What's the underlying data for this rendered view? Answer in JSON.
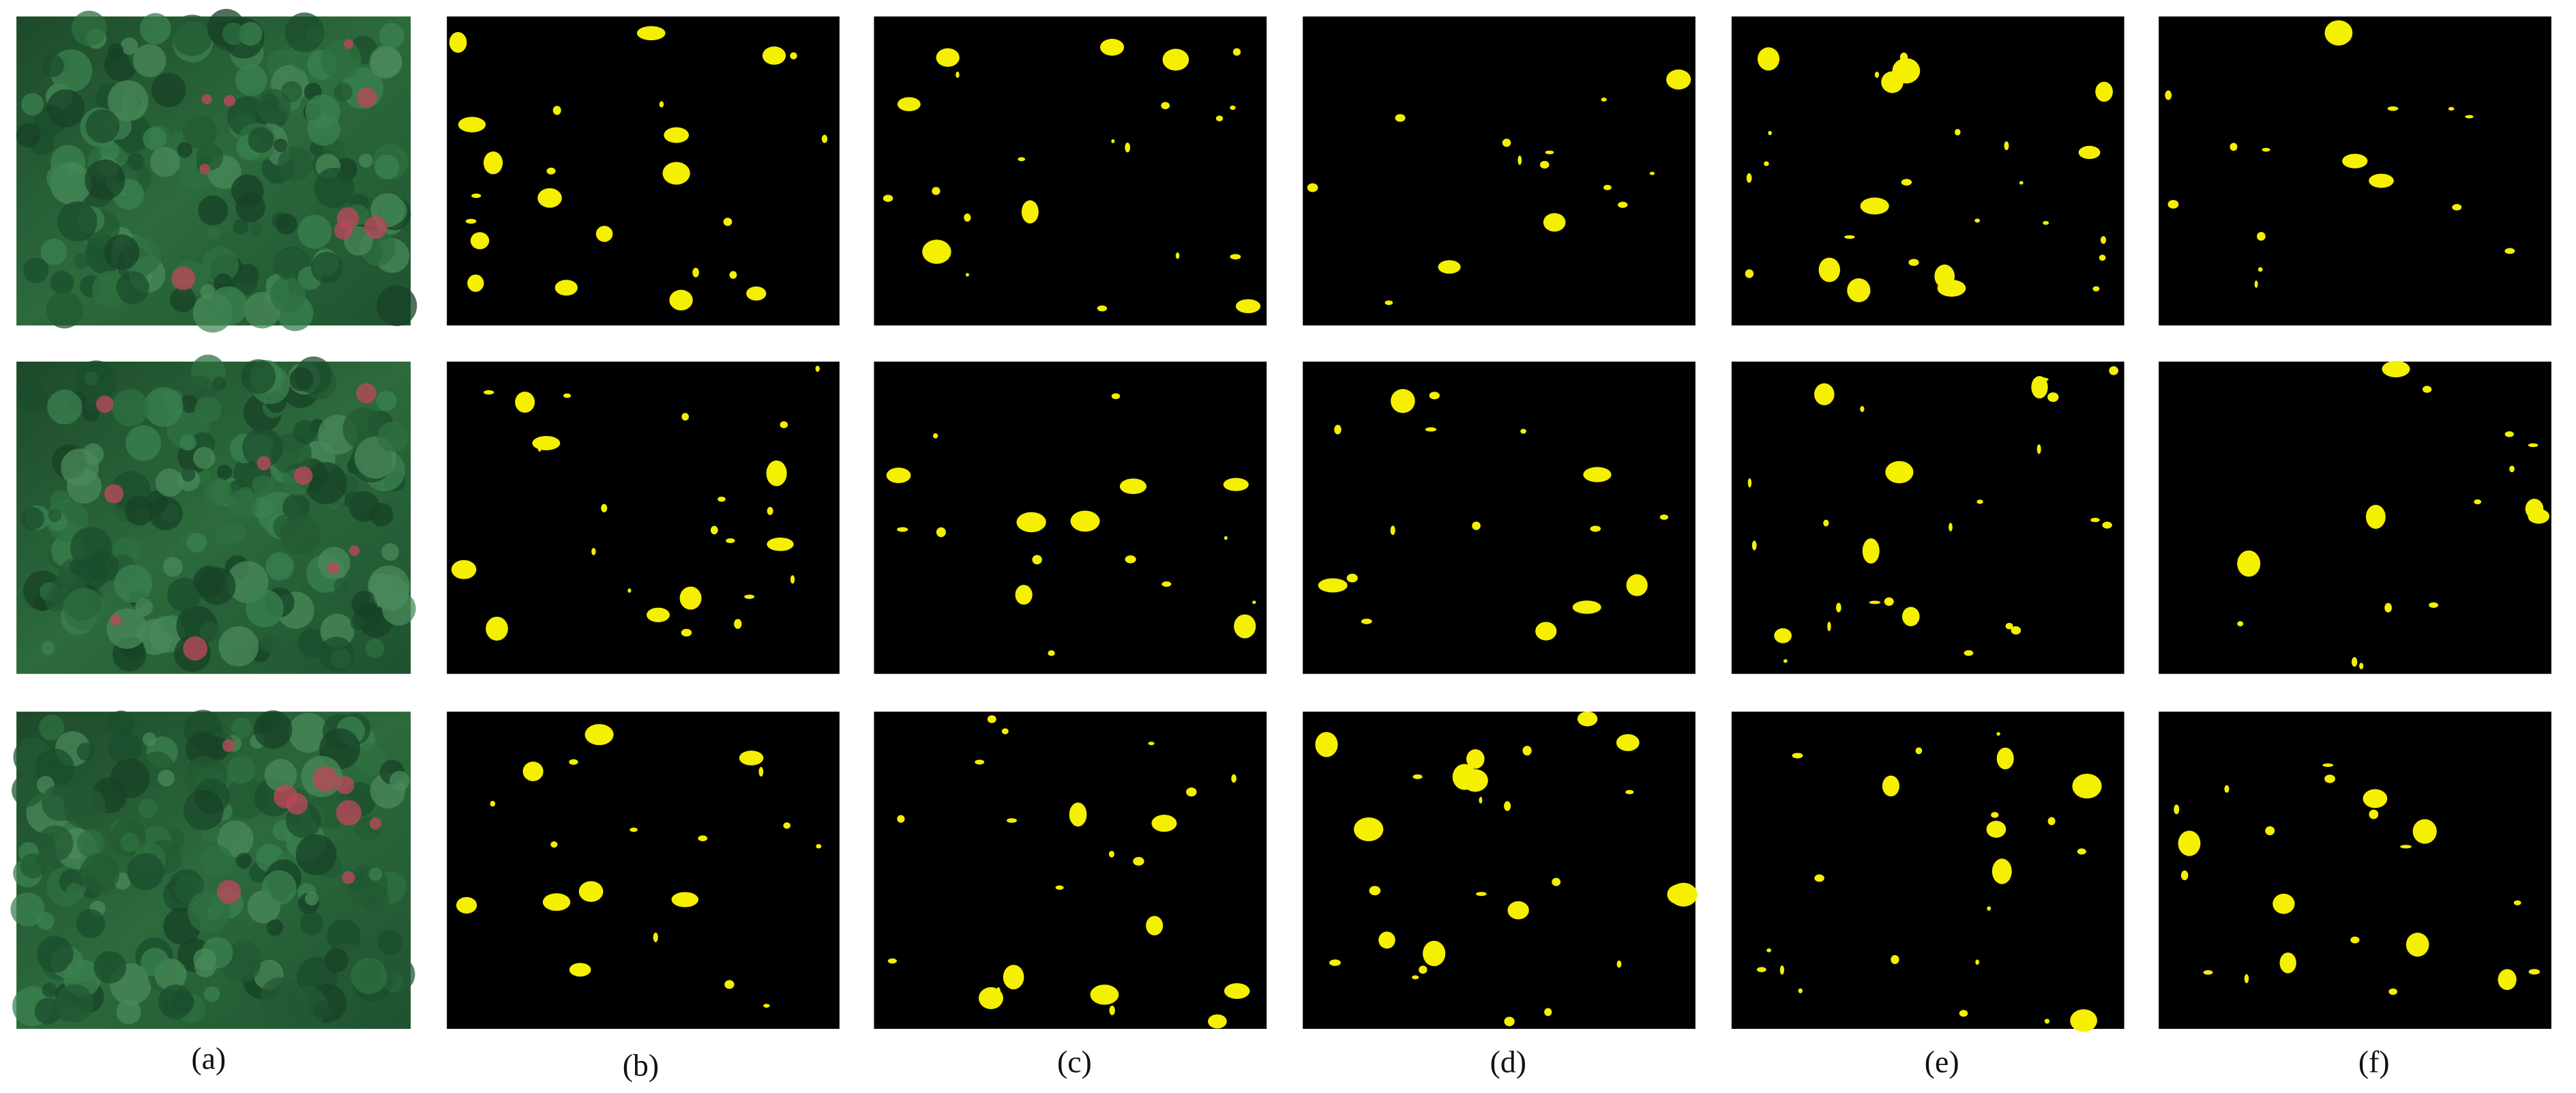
{
  "panel_labels": [
    "(a)",
    "(b)",
    "(c)",
    "(d)",
    "(e)",
    "(f)"
  ]
}
